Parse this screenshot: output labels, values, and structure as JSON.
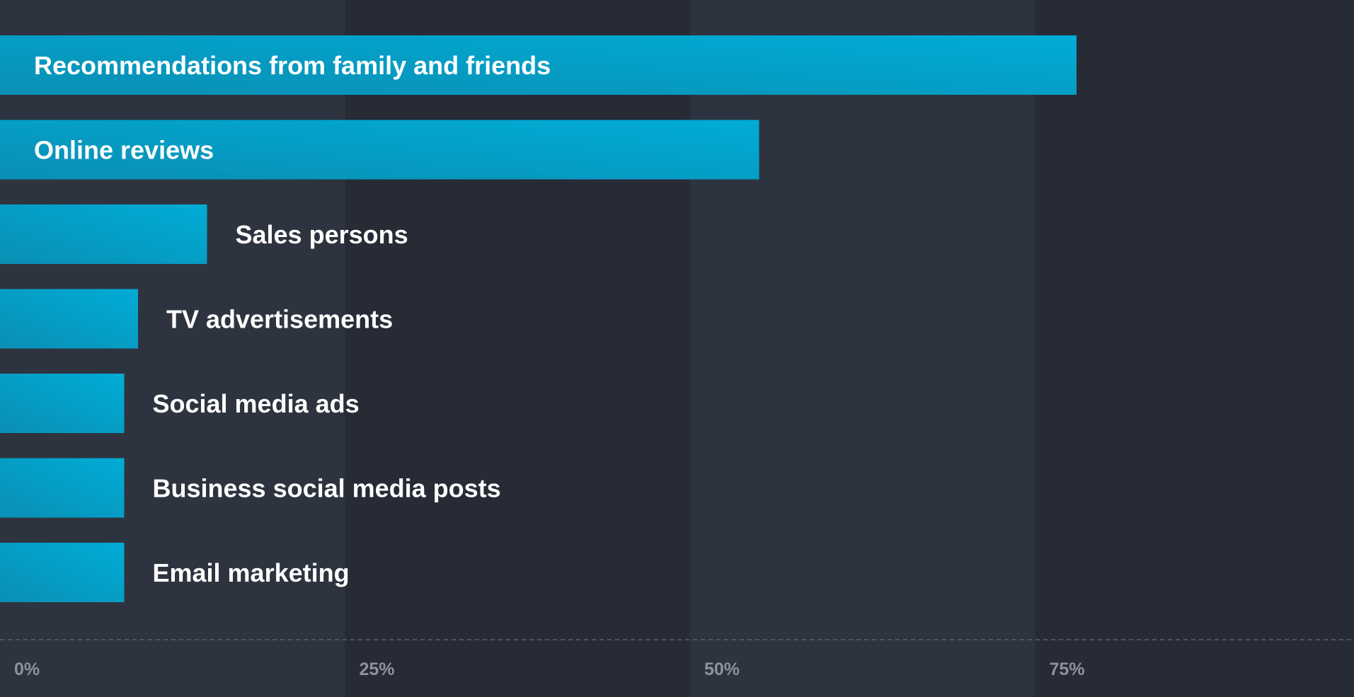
{
  "chart_data": {
    "type": "bar",
    "orientation": "horizontal",
    "categories": [
      "Recommendations from family and friends",
      "Online reviews",
      "Sales persons",
      "TV advertisements",
      "Social media ads",
      "Business social media posts",
      "Email marketing"
    ],
    "values": [
      78,
      55,
      15,
      10,
      9,
      9,
      9
    ],
    "xlim": [
      0,
      100
    ],
    "x_ticks": [
      0,
      25,
      50,
      75
    ],
    "x_tick_labels": [
      "0%",
      "25%",
      "50%",
      "75%"
    ],
    "title": "",
    "xlabel": "",
    "ylabel": "",
    "grid": "alternating vertical bands",
    "legend": "none"
  },
  "colors": {
    "background": "#262b36",
    "band_light": "#2e343f",
    "bar_start": "#0a8fb4",
    "bar_end": "#00acd6",
    "label_text": "#ffffff",
    "tick_text": "#8d929c",
    "axis_line": "#5a606b"
  }
}
